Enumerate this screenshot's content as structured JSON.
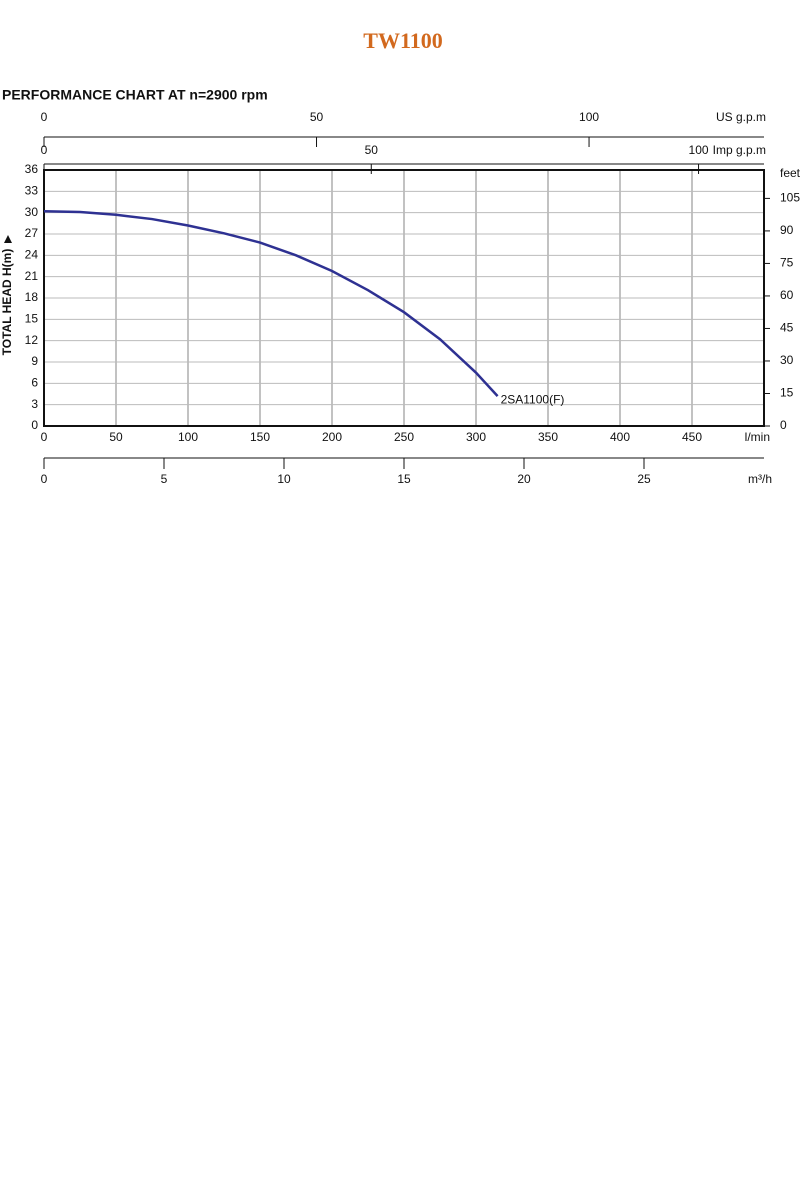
{
  "chart_data": {
    "type": "line",
    "title": "TW1100",
    "subtitle": "PERFORMANCE CHART AT  n=2900 rpm",
    "y_label": "TOTAL HEAD H(m)",
    "x_label": "l/min",
    "x": [
      0,
      25,
      50,
      75,
      100,
      125,
      150,
      175,
      200,
      225,
      250,
      275,
      300,
      315
    ],
    "series": [
      {
        "name": "2SA1100(F)",
        "color": "#2e3192",
        "values": [
          30.2,
          30.1,
          29.7,
          29.1,
          28.2,
          27.1,
          25.8,
          24.0,
          21.8,
          19.1,
          16.0,
          12.2,
          7.5,
          4.2
        ]
      }
    ],
    "xlim": [
      0,
      500
    ],
    "xticks": [
      0,
      50,
      100,
      150,
      200,
      250,
      300,
      350,
      400,
      450
    ],
    "ylim": [
      0,
      36
    ],
    "yticks": [
      0,
      3,
      6,
      9,
      12,
      15,
      18,
      21,
      24,
      27,
      30,
      33,
      36
    ],
    "y2_label": "feet",
    "y2lim": [
      0,
      118.1
    ],
    "y2ticks": [
      0,
      15,
      30,
      45,
      60,
      75,
      90,
      105
    ],
    "grid": true,
    "top_axes": [
      {
        "label": "US g.p.m",
        "lim": [
          0,
          132.1
        ],
        "ticks": [
          0,
          50,
          100
        ]
      },
      {
        "label": "Imp g.p.m",
        "lim": [
          0,
          110
        ],
        "ticks": [
          0,
          50,
          100
        ]
      }
    ],
    "bottom_axis2": {
      "label": "m³/h",
      "lim": [
        0,
        30
      ],
      "ticks": [
        0,
        5,
        10,
        15,
        20,
        25
      ]
    }
  }
}
